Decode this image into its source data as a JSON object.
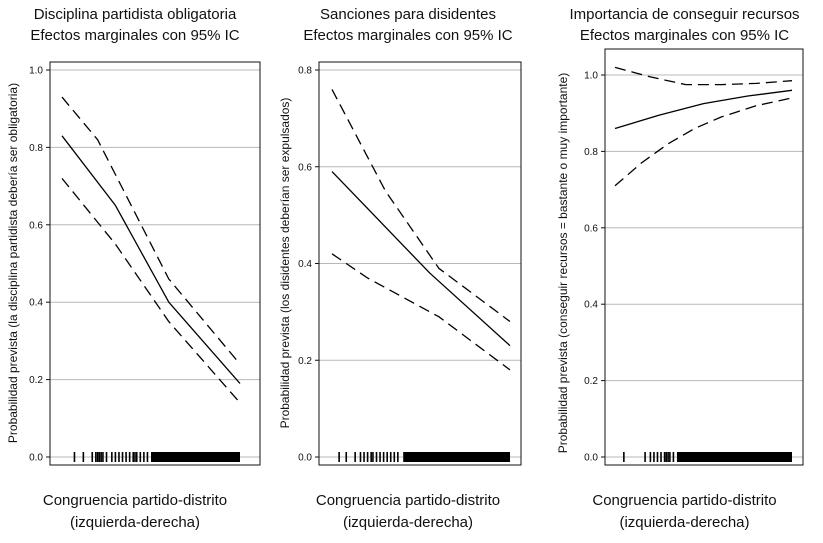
{
  "chart_data": [
    {
      "type": "line",
      "title_line1": "Disciplina partidista obligatoria",
      "title_line2": "Efectos marginales con 95% IC",
      "xlabel_line1": "Congruencia partido-distrito",
      "xlabel_line2": "(izquierda-derecha)",
      "ylabel": "Probabilidad prevista (la disciplina partidista debería ser obligatoria)",
      "ylim": [
        0,
        1.0
      ],
      "yticks": [
        0.0,
        0.2,
        0.4,
        0.6,
        0.8,
        1.0
      ],
      "ytick_labels": [
        "0.0",
        "0.2",
        "0.4",
        "0.6",
        "0.8",
        "1.0"
      ],
      "xlim": [
        0,
        1
      ],
      "grid": true,
      "series": [
        {
          "name": "estimate",
          "style": "solid",
          "x": [
            0.0,
            0.3,
            0.6,
            1.0
          ],
          "y": [
            0.83,
            0.65,
            0.4,
            0.19
          ]
        },
        {
          "name": "upper 95% CI",
          "style": "dashed",
          "x": [
            0.0,
            0.2,
            0.3,
            0.6,
            1.0
          ],
          "y": [
            0.93,
            0.82,
            0.73,
            0.46,
            0.24
          ]
        },
        {
          "name": "lower 95% CI",
          "style": "dashed",
          "x": [
            0.0,
            0.3,
            0.6,
            1.0
          ],
          "y": [
            0.72,
            0.55,
            0.35,
            0.14
          ]
        }
      ],
      "rug": [
        0.07,
        0.12,
        0.17,
        0.19,
        0.2,
        0.21,
        0.22,
        0.23,
        0.25,
        0.28,
        0.3,
        0.32,
        0.34,
        0.36,
        0.38,
        0.4,
        0.41,
        0.42,
        0.44,
        0.46,
        0.48
      ],
      "rug_solid_range": [
        0.5,
        1.0
      ]
    },
    {
      "type": "line",
      "title_line1": "Sanciones para disidentes",
      "title_line2": "Efectos marginales con 95% IC",
      "xlabel_line1": "Congruencia partido-distrito",
      "xlabel_line2": "(izquierda-derecha)",
      "ylabel": "Probabilidad prevista (los disidentes deberían ser expulsados)",
      "ylim": [
        0,
        0.8
      ],
      "yticks": [
        0.0,
        0.2,
        0.4,
        0.6,
        0.8
      ],
      "ytick_labels": [
        "0.0",
        "0.2",
        "0.4",
        "0.6",
        "0.8"
      ],
      "xlim": [
        0,
        1
      ],
      "grid": true,
      "series": [
        {
          "name": "estimate",
          "style": "solid",
          "x": [
            0.0,
            0.55,
            1.0
          ],
          "y": [
            0.59,
            0.38,
            0.23
          ]
        },
        {
          "name": "upper 95% CI",
          "style": "dashed",
          "x": [
            0.0,
            0.3,
            0.6,
            1.0
          ],
          "y": [
            0.76,
            0.55,
            0.39,
            0.28
          ]
        },
        {
          "name": "lower 95% CI",
          "style": "dashed",
          "x": [
            0.0,
            0.2,
            0.6,
            1.0
          ],
          "y": [
            0.42,
            0.37,
            0.29,
            0.18
          ]
        }
      ],
      "rug": [
        0.04,
        0.08,
        0.13,
        0.16,
        0.18,
        0.2,
        0.22,
        0.23,
        0.25,
        0.27,
        0.29,
        0.31,
        0.33,
        0.35,
        0.37
      ],
      "rug_solid_range": [
        0.4,
        1.0
      ]
    },
    {
      "type": "line",
      "title_line1": "Importancia de conseguir recursos",
      "title_line2": "Efectos marginales con 95% IC",
      "xlabel_line1": "Congruencia partido-distrito",
      "xlabel_line2": "(izquierda-derecha)",
      "ylabel": "Probabilidad prevista (conseguir recursos = bastante o muy importante)",
      "ylim": [
        0,
        1.0
      ],
      "yticks": [
        0.0,
        0.2,
        0.4,
        0.6,
        0.8,
        1.0
      ],
      "ytick_labels": [
        "0.0",
        "0.2",
        "0.4",
        "0.6",
        "0.8",
        "1.0"
      ],
      "xlim": [
        0,
        1
      ],
      "grid": true,
      "series": [
        {
          "name": "estimate",
          "style": "solid",
          "x": [
            0.0,
            0.25,
            0.5,
            0.75,
            1.0
          ],
          "y": [
            0.86,
            0.895,
            0.925,
            0.945,
            0.96
          ]
        },
        {
          "name": "upper 95% CI",
          "style": "dashed",
          "x": [
            0.0,
            0.2,
            0.4,
            0.6,
            0.8,
            1.0
          ],
          "y": [
            1.02,
            0.995,
            0.975,
            0.975,
            0.978,
            0.985
          ]
        },
        {
          "name": "lower 95% CI",
          "style": "dashed",
          "x": [
            0.0,
            0.15,
            0.3,
            0.45,
            0.6,
            0.8,
            1.0
          ],
          "y": [
            0.71,
            0.77,
            0.82,
            0.86,
            0.89,
            0.92,
            0.94
          ]
        }
      ],
      "rug": [
        0.05,
        0.17,
        0.2,
        0.22,
        0.24,
        0.26,
        0.28,
        0.29,
        0.3,
        0.31,
        0.33
      ],
      "rug_solid_range": [
        0.35,
        1.0
      ]
    }
  ]
}
